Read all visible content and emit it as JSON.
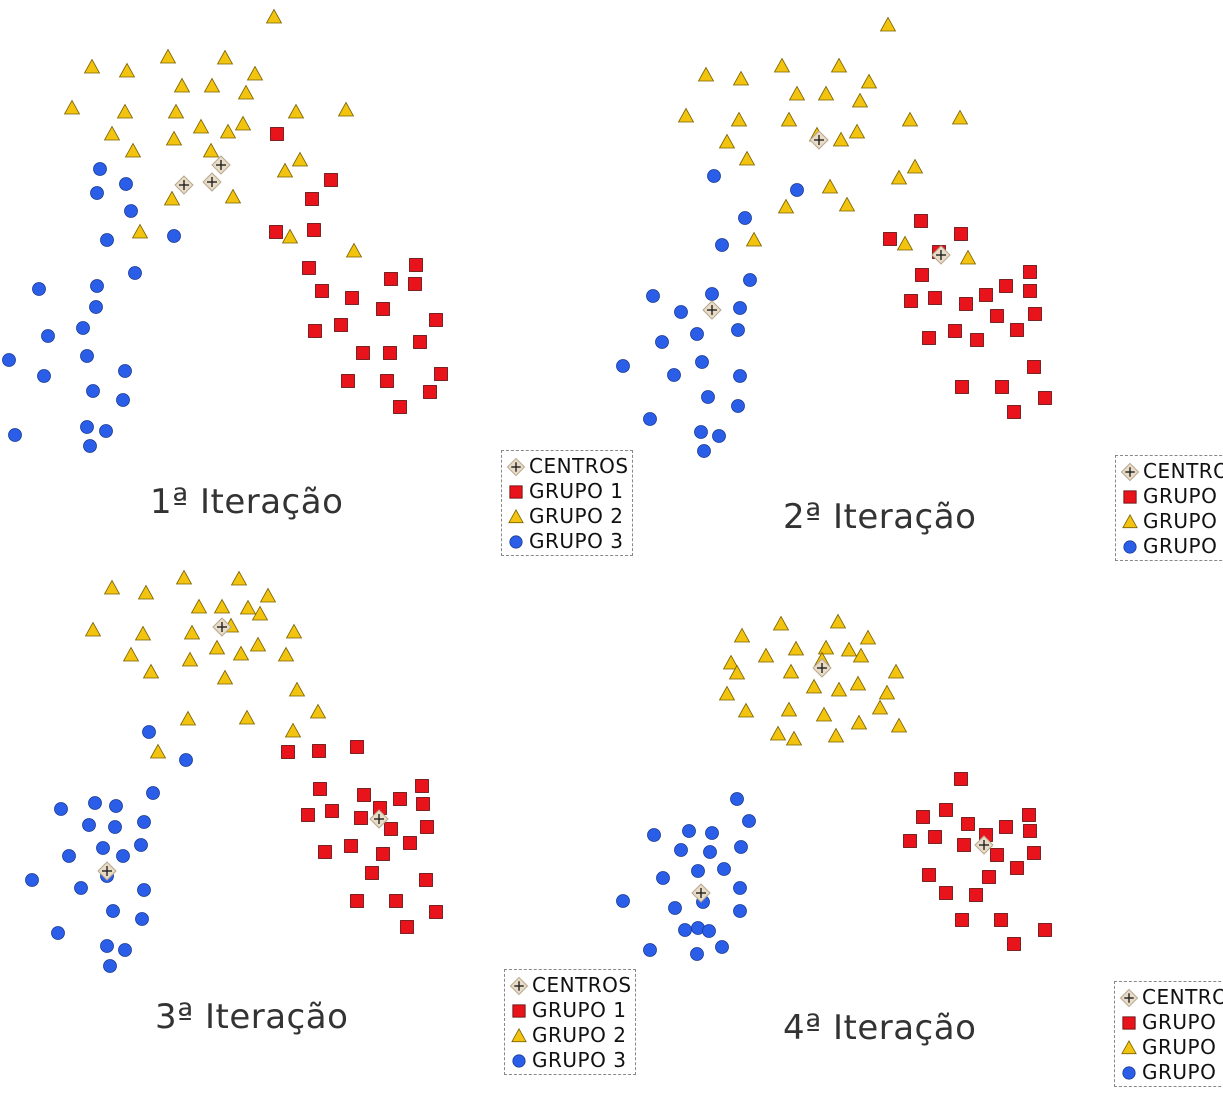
{
  "legend": {
    "centros": "CENTROS",
    "grupo1": "GRUPO 1",
    "grupo2": "GRUPO 2",
    "grupo3": "GRUPO 3"
  },
  "colors": {
    "grupo1": "#e8131b",
    "grupo2": "#f2c40f",
    "grupo3": "#2b5ee8",
    "centro": "#e8dcc6"
  },
  "chart_data": [
    {
      "type": "scatter",
      "title": "1ª Iteração",
      "grid": false,
      "legend_position": "bottom-right",
      "series": [
        {
          "name": "GRUPO 1",
          "marker": "square",
          "x": [
            277,
            312,
            331,
            276,
            314,
            309,
            322,
            352,
            391,
            416,
            415,
            383,
            341,
            315,
            436,
            420,
            363,
            390,
            348,
            387,
            441,
            430,
            400
          ],
          "y": [
            134,
            199,
            180,
            232,
            230,
            268,
            291,
            298,
            279,
            265,
            284,
            309,
            325,
            331,
            320,
            342,
            353,
            353,
            381,
            381,
            374,
            392,
            407
          ]
        },
        {
          "name": "GRUPO 2",
          "marker": "triangle",
          "x": [
            274,
            92,
            127,
            168,
            225,
            255,
            182,
            212,
            246,
            72,
            125,
            176,
            296,
            346,
            112,
            174,
            201,
            228,
            243,
            133,
            211,
            300,
            285,
            172,
            233,
            140,
            290,
            354
          ],
          "y": [
            17,
            67,
            71,
            57,
            58,
            74,
            86,
            86,
            93,
            108,
            112,
            112,
            112,
            110,
            134,
            139,
            127,
            132,
            124,
            151,
            151,
            160,
            171,
            199,
            197,
            232,
            237,
            251
          ]
        },
        {
          "name": "GRUPO 3",
          "marker": "circle",
          "x": [
            100,
            97,
            126,
            131,
            107,
            174,
            135,
            97,
            96,
            39,
            83,
            48,
            87,
            9,
            44,
            93,
            125,
            123,
            87,
            106,
            90,
            15
          ],
          "y": [
            169,
            193,
            184,
            211,
            240,
            236,
            273,
            286,
            307,
            289,
            328,
            336,
            356,
            360,
            376,
            391,
            371,
            400,
            427,
            431,
            446,
            435
          ]
        },
        {
          "name": "CENTROS",
          "marker": "diamond-plus",
          "x": [
            184,
            212,
            221
          ],
          "y": [
            185,
            182,
            165
          ]
        }
      ]
    },
    {
      "type": "scatter",
      "title": "2ª Iteração",
      "grid": false,
      "legend_position": "bottom-right",
      "series": [
        {
          "name": "GRUPO 1",
          "marker": "square",
          "x": [
            921,
            961,
            890,
            939,
            922,
            1030,
            1006,
            1030,
            911,
            935,
            966,
            986,
            997,
            1035,
            1017,
            929,
            955,
            977,
            1034,
            962,
            1002,
            1045,
            1014
          ],
          "y": [
            221,
            234,
            239,
            252,
            275,
            272,
            286,
            291,
            301,
            298,
            304,
            295,
            316,
            314,
            330,
            338,
            331,
            340,
            367,
            387,
            387,
            398,
            412
          ]
        },
        {
          "name": "GRUPO 2",
          "marker": "triangle",
          "x": [
            888,
            706,
            741,
            782,
            839,
            869,
            797,
            826,
            860,
            686,
            739,
            789,
            910,
            960,
            727,
            841,
            747,
            857,
            817,
            915,
            899,
            830,
            786,
            847,
            754,
            905,
            968
          ],
          "y": [
            25,
            75,
            79,
            66,
            66,
            82,
            94,
            94,
            101,
            116,
            120,
            120,
            120,
            118,
            142,
            140,
            159,
            132,
            135,
            167,
            178,
            187,
            207,
            205,
            240,
            244,
            258
          ]
        },
        {
          "name": "GRUPO 3",
          "marker": "circle",
          "x": [
            714,
            797,
            745,
            722,
            750,
            653,
            740,
            712,
            681,
            697,
            738,
            662,
            623,
            702,
            674,
            740,
            708,
            738,
            650,
            701,
            719,
            704
          ],
          "y": [
            176,
            190,
            218,
            245,
            280,
            296,
            308,
            294,
            312,
            334,
            330,
            342,
            366,
            362,
            375,
            376,
            397,
            406,
            419,
            432,
            436,
            451
          ]
        },
        {
          "name": "CENTROS",
          "marker": "diamond-plus",
          "x": [
            819,
            941,
            712
          ],
          "y": [
            140,
            255,
            310
          ]
        }
      ]
    },
    {
      "type": "scatter",
      "title": "3ª Iteração",
      "grid": false,
      "legend_position": "bottom-right",
      "series": [
        {
          "name": "GRUPO 1",
          "marker": "square",
          "x": [
            288,
            319,
            357,
            320,
            308,
            332,
            364,
            380,
            400,
            422,
            423,
            361,
            391,
            427,
            410,
            325,
            351,
            383,
            372,
            426,
            357,
            396,
            436,
            407
          ],
          "y": [
            752,
            751,
            747,
            789,
            815,
            811,
            795,
            808,
            799,
            786,
            804,
            818,
            829,
            827,
            843,
            852,
            846,
            854,
            873,
            880,
            901,
            901,
            912,
            927
          ]
        },
        {
          "name": "GRUPO 2",
          "marker": "triangle",
          "x": [
            112,
            146,
            184,
            239,
            199,
            222,
            248,
            260,
            268,
            93,
            143,
            192,
            231,
            258,
            294,
            217,
            241,
            131,
            190,
            286,
            151,
            225,
            297,
            188,
            247,
            318,
            293,
            158
          ],
          "y": [
            588,
            593,
            578,
            579,
            607,
            607,
            608,
            614,
            596,
            630,
            634,
            633,
            626,
            645,
            632,
            648,
            654,
            655,
            660,
            655,
            672,
            678,
            690,
            719,
            718,
            712,
            731,
            752
          ]
        },
        {
          "name": "GRUPO 3",
          "marker": "circle",
          "x": [
            149,
            186,
            153,
            95,
            116,
            61,
            89,
            115,
            144,
            103,
            141,
            69,
            123,
            32,
            81,
            107,
            144,
            113,
            142,
            58,
            107,
            125,
            110
          ],
          "y": [
            732,
            760,
            793,
            803,
            806,
            809,
            825,
            827,
            822,
            848,
            845,
            856,
            856,
            880,
            888,
            876,
            890,
            911,
            919,
            933,
            946,
            950,
            966
          ]
        },
        {
          "name": "CENTROS",
          "marker": "diamond-plus",
          "x": [
            222,
            379,
            107
          ],
          "y": [
            627,
            819,
            871
          ]
        }
      ]
    },
    {
      "type": "scatter",
      "title": "4ª Iteração",
      "grid": false,
      "legend_position": "bottom-right",
      "series": [
        {
          "name": "GRUPO 1",
          "marker": "square",
          "x": [
            961,
            923,
            946,
            968,
            986,
            1006,
            1029,
            1030,
            910,
            935,
            964,
            1017,
            997,
            1034,
            929,
            946,
            976,
            989,
            1045,
            962,
            1001,
            1014
          ],
          "y": [
            779,
            817,
            810,
            824,
            835,
            827,
            815,
            831,
            841,
            837,
            845,
            868,
            855,
            853,
            875,
            893,
            895,
            877,
            930,
            920,
            920,
            944
          ]
        },
        {
          "name": "GRUPO 2",
          "marker": "triangle",
          "x": [
            838,
            742,
            781,
            868,
            766,
            796,
            826,
            849,
            861,
            731,
            737,
            822,
            791,
            896,
            727,
            814,
            839,
            858,
            887,
            746,
            789,
            824,
            880,
            859,
            899,
            778,
            794,
            836
          ],
          "y": [
            622,
            636,
            624,
            638,
            656,
            649,
            648,
            650,
            656,
            663,
            673,
            660,
            672,
            672,
            694,
            687,
            690,
            684,
            693,
            711,
            710,
            715,
            708,
            723,
            726,
            734,
            739,
            736
          ]
        },
        {
          "name": "GRUPO 3",
          "marker": "circle",
          "x": [
            737,
            654,
            689,
            712,
            749,
            681,
            710,
            741,
            663,
            698,
            724,
            740,
            623,
            675,
            703,
            698,
            740,
            650,
            685,
            697,
            722,
            709
          ],
          "y": [
            799,
            835,
            831,
            833,
            821,
            850,
            852,
            847,
            878,
            871,
            869,
            888,
            901,
            908,
            902,
            928,
            911,
            950,
            930,
            954,
            947,
            931
          ]
        },
        {
          "name": "CENTROS",
          "marker": "diamond-plus",
          "x": [
            822,
            984,
            701
          ],
          "y": [
            668,
            845,
            893
          ]
        }
      ]
    }
  ]
}
